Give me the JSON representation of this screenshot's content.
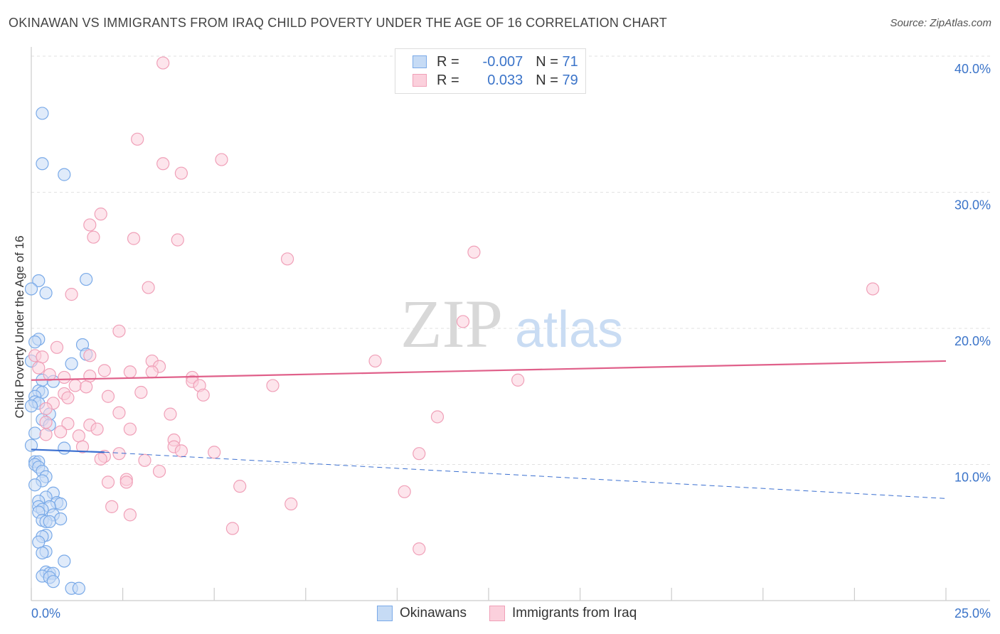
{
  "header": {
    "title": "OKINAWAN VS IMMIGRANTS FROM IRAQ CHILD POVERTY UNDER THE AGE OF 16 CORRELATION CHART",
    "source": "Source: ZipAtlas.com"
  },
  "watermark": {
    "zip": "ZIP",
    "atlas": "atlas"
  },
  "legend": {
    "rows": [
      {
        "r_label": "R = ",
        "r_value": "-0.007",
        "n_label": "N = ",
        "n_value": "71",
        "color": "#7aaae8",
        "fill": "#c6dbf5"
      },
      {
        "r_label": "R = ",
        "r_value": "0.033",
        "n_label": "N = ",
        "n_value": "79",
        "color": "#f0a0b8",
        "fill": "#fbd0dc"
      }
    ]
  },
  "bottom_legend": [
    {
      "label": "Okinawans",
      "color": "#7aaae8",
      "fill": "#c6dbf5"
    },
    {
      "label": "Immigrants from Iraq",
      "color": "#f0a0b8",
      "fill": "#fbd0dc"
    }
  ],
  "chart_data": {
    "type": "scatter",
    "title": "OKINAWAN VS IMMIGRANTS FROM IRAQ CHILD POVERTY UNDER THE AGE OF 16 CORRELATION CHART",
    "xlabel": "",
    "ylabel": "Child Poverty Under the Age of 16",
    "xlim": [
      0,
      25
    ],
    "ylim": [
      0,
      40
    ],
    "x_tick_labels": [
      "0.0%",
      "25.0%"
    ],
    "y_tick_values": [
      10,
      20,
      30,
      40
    ],
    "y_tick_labels": [
      "10.0%",
      "20.0%",
      "30.0%",
      "40.0%"
    ],
    "grid": true,
    "series": [
      {
        "name": "Okinawans",
        "color": "#7aaae8",
        "fill": "#c6dbf5",
        "trend": {
          "solid": [
            [
              0,
              11.1
            ],
            [
              2.0,
              10.9
            ]
          ],
          "dashed": [
            [
              2.0,
              10.9
            ],
            [
              25,
              7.5
            ]
          ],
          "color": "#3a6fd0"
        },
        "points": [
          [
            0.3,
            35.8
          ],
          [
            0.3,
            32.1
          ],
          [
            0.9,
            31.3
          ],
          [
            1.5,
            23.6
          ],
          [
            0.2,
            23.5
          ],
          [
            0.4,
            22.6
          ],
          [
            0.0,
            22.9
          ],
          [
            0.2,
            19.2
          ],
          [
            0.1,
            19.0
          ],
          [
            1.4,
            18.8
          ],
          [
            1.5,
            18.1
          ],
          [
            1.1,
            17.4
          ],
          [
            0.0,
            17.6
          ],
          [
            0.3,
            16.2
          ],
          [
            0.6,
            16.1
          ],
          [
            0.2,
            15.4
          ],
          [
            0.3,
            15.3
          ],
          [
            0.1,
            15.0
          ],
          [
            0.1,
            14.6
          ],
          [
            0.2,
            14.5
          ],
          [
            0.0,
            14.3
          ],
          [
            0.5,
            13.7
          ],
          [
            0.3,
            13.3
          ],
          [
            0.5,
            12.9
          ],
          [
            0.1,
            12.3
          ],
          [
            0.9,
            11.2
          ],
          [
            0.0,
            11.4
          ],
          [
            0.1,
            10.2
          ],
          [
            0.2,
            10.2
          ],
          [
            0.1,
            10.0
          ],
          [
            0.2,
            9.8
          ],
          [
            0.3,
            9.5
          ],
          [
            0.4,
            9.1
          ],
          [
            0.3,
            8.8
          ],
          [
            0.1,
            8.5
          ],
          [
            0.6,
            7.9
          ],
          [
            0.4,
            7.6
          ],
          [
            0.2,
            7.3
          ],
          [
            0.7,
            7.2
          ],
          [
            0.8,
            7.1
          ],
          [
            0.2,
            6.9
          ],
          [
            0.5,
            6.9
          ],
          [
            0.3,
            6.7
          ],
          [
            0.2,
            6.5
          ],
          [
            0.6,
            6.3
          ],
          [
            0.8,
            6.0
          ],
          [
            0.3,
            5.9
          ],
          [
            0.4,
            5.8
          ],
          [
            0.5,
            5.8
          ],
          [
            0.4,
            4.8
          ],
          [
            0.3,
            4.7
          ],
          [
            0.2,
            4.3
          ],
          [
            0.4,
            3.6
          ],
          [
            0.3,
            3.5
          ],
          [
            0.9,
            2.9
          ],
          [
            0.4,
            2.1
          ],
          [
            0.5,
            2.0
          ],
          [
            0.6,
            2.0
          ],
          [
            0.3,
            1.8
          ],
          [
            0.5,
            1.7
          ],
          [
            0.6,
            1.4
          ],
          [
            1.1,
            0.9
          ],
          [
            1.3,
            0.9
          ]
        ]
      },
      {
        "name": "Immigrants from Iraq",
        "color": "#f0a0b8",
        "fill": "#fbd0dc",
        "trend": {
          "solid": [
            [
              0,
              16.2
            ],
            [
              25,
              17.6
            ]
          ],
          "color": "#e0608a"
        },
        "points": [
          [
            3.6,
            39.5
          ],
          [
            2.9,
            33.9
          ],
          [
            5.2,
            32.4
          ],
          [
            3.6,
            32.1
          ],
          [
            4.1,
            31.4
          ],
          [
            1.9,
            28.4
          ],
          [
            1.6,
            27.6
          ],
          [
            1.7,
            26.7
          ],
          [
            2.8,
            26.6
          ],
          [
            4.0,
            26.5
          ],
          [
            12.1,
            25.6
          ],
          [
            7.0,
            25.1
          ],
          [
            23.0,
            22.9
          ],
          [
            3.2,
            23.0
          ],
          [
            1.1,
            22.5
          ],
          [
            11.8,
            20.5
          ],
          [
            2.4,
            19.8
          ],
          [
            0.7,
            18.6
          ],
          [
            0.1,
            18.0
          ],
          [
            0.3,
            17.9
          ],
          [
            1.6,
            18.0
          ],
          [
            9.4,
            17.6
          ],
          [
            3.3,
            17.6
          ],
          [
            3.5,
            17.2
          ],
          [
            0.2,
            17.1
          ],
          [
            2.0,
            16.9
          ],
          [
            2.7,
            16.8
          ],
          [
            3.3,
            16.8
          ],
          [
            0.5,
            16.6
          ],
          [
            0.9,
            16.4
          ],
          [
            1.6,
            16.5
          ],
          [
            4.4,
            16.4
          ],
          [
            4.4,
            16.1
          ],
          [
            13.3,
            16.2
          ],
          [
            6.6,
            15.8
          ],
          [
            1.2,
            15.8
          ],
          [
            1.5,
            15.7
          ],
          [
            4.6,
            15.8
          ],
          [
            3.0,
            15.3
          ],
          [
            0.9,
            15.2
          ],
          [
            1.0,
            14.9
          ],
          [
            2.1,
            15.0
          ],
          [
            4.7,
            15.1
          ],
          [
            0.6,
            14.5
          ],
          [
            0.4,
            14.1
          ],
          [
            2.4,
            13.8
          ],
          [
            3.8,
            13.7
          ],
          [
            11.1,
            13.5
          ],
          [
            0.4,
            13.1
          ],
          [
            1.0,
            13.0
          ],
          [
            1.6,
            12.9
          ],
          [
            2.7,
            12.6
          ],
          [
            1.8,
            12.6
          ],
          [
            0.8,
            12.4
          ],
          [
            0.4,
            12.2
          ],
          [
            1.3,
            12.1
          ],
          [
            3.9,
            11.8
          ],
          [
            3.9,
            11.3
          ],
          [
            1.4,
            11.3
          ],
          [
            4.1,
            11.0
          ],
          [
            5.0,
            10.9
          ],
          [
            10.6,
            10.8
          ],
          [
            2.4,
            10.8
          ],
          [
            2.0,
            10.6
          ],
          [
            1.9,
            10.4
          ],
          [
            3.1,
            10.3
          ],
          [
            3.5,
            9.5
          ],
          [
            2.6,
            8.9
          ],
          [
            2.6,
            8.7
          ],
          [
            2.1,
            8.7
          ],
          [
            5.7,
            8.4
          ],
          [
            10.2,
            8.0
          ],
          [
            7.1,
            7.1
          ],
          [
            2.2,
            6.9
          ],
          [
            2.7,
            6.3
          ],
          [
            5.5,
            5.3
          ],
          [
            10.6,
            3.8
          ]
        ]
      }
    ]
  }
}
